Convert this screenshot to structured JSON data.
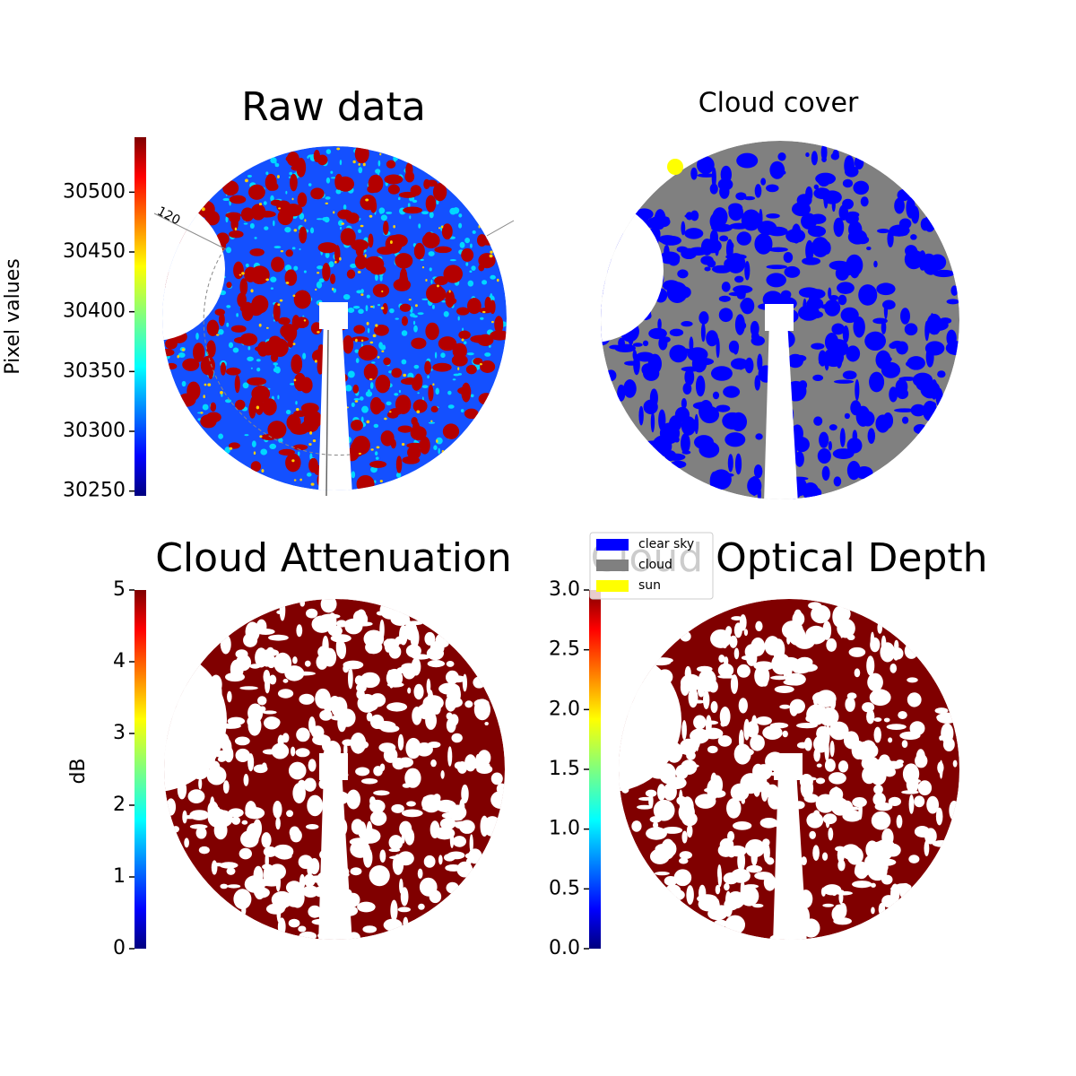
{
  "chart_data": [
    {
      "type": "image",
      "title": "Raw data",
      "colorbar_label": "Pixel values",
      "colormap": "jet",
      "ylim": [
        30246,
        30546
      ],
      "yticks": [
        30250,
        30300,
        30350,
        30400,
        30450,
        30500
      ],
      "annotation": "120"
    },
    {
      "type": "image",
      "title": "Cloud cover",
      "series": [
        {
          "name": "clear sky",
          "color": "#0000ff"
        },
        {
          "name": "cloud",
          "color": "#808080"
        },
        {
          "name": "sun",
          "color": "#ffff00"
        }
      ]
    },
    {
      "type": "image",
      "title": "Cloud Attenuation",
      "colorbar_label": "dB",
      "colormap": "jet",
      "ylim": [
        0,
        5
      ],
      "yticks": [
        0,
        1,
        2,
        3,
        4,
        5
      ]
    },
    {
      "type": "image",
      "title": "Cloud Optical Depth",
      "colormap": "jet",
      "ylim": [
        0,
        3
      ],
      "yticks": [
        {
          "value": 0,
          "label": "0.0"
        },
        0.5,
        {
          "value": 1,
          "label": "1.0"
        },
        1.5,
        {
          "value": 2,
          "label": "2.0"
        },
        2.5,
        {
          "value": 3,
          "label": "3.0"
        }
      ]
    }
  ]
}
